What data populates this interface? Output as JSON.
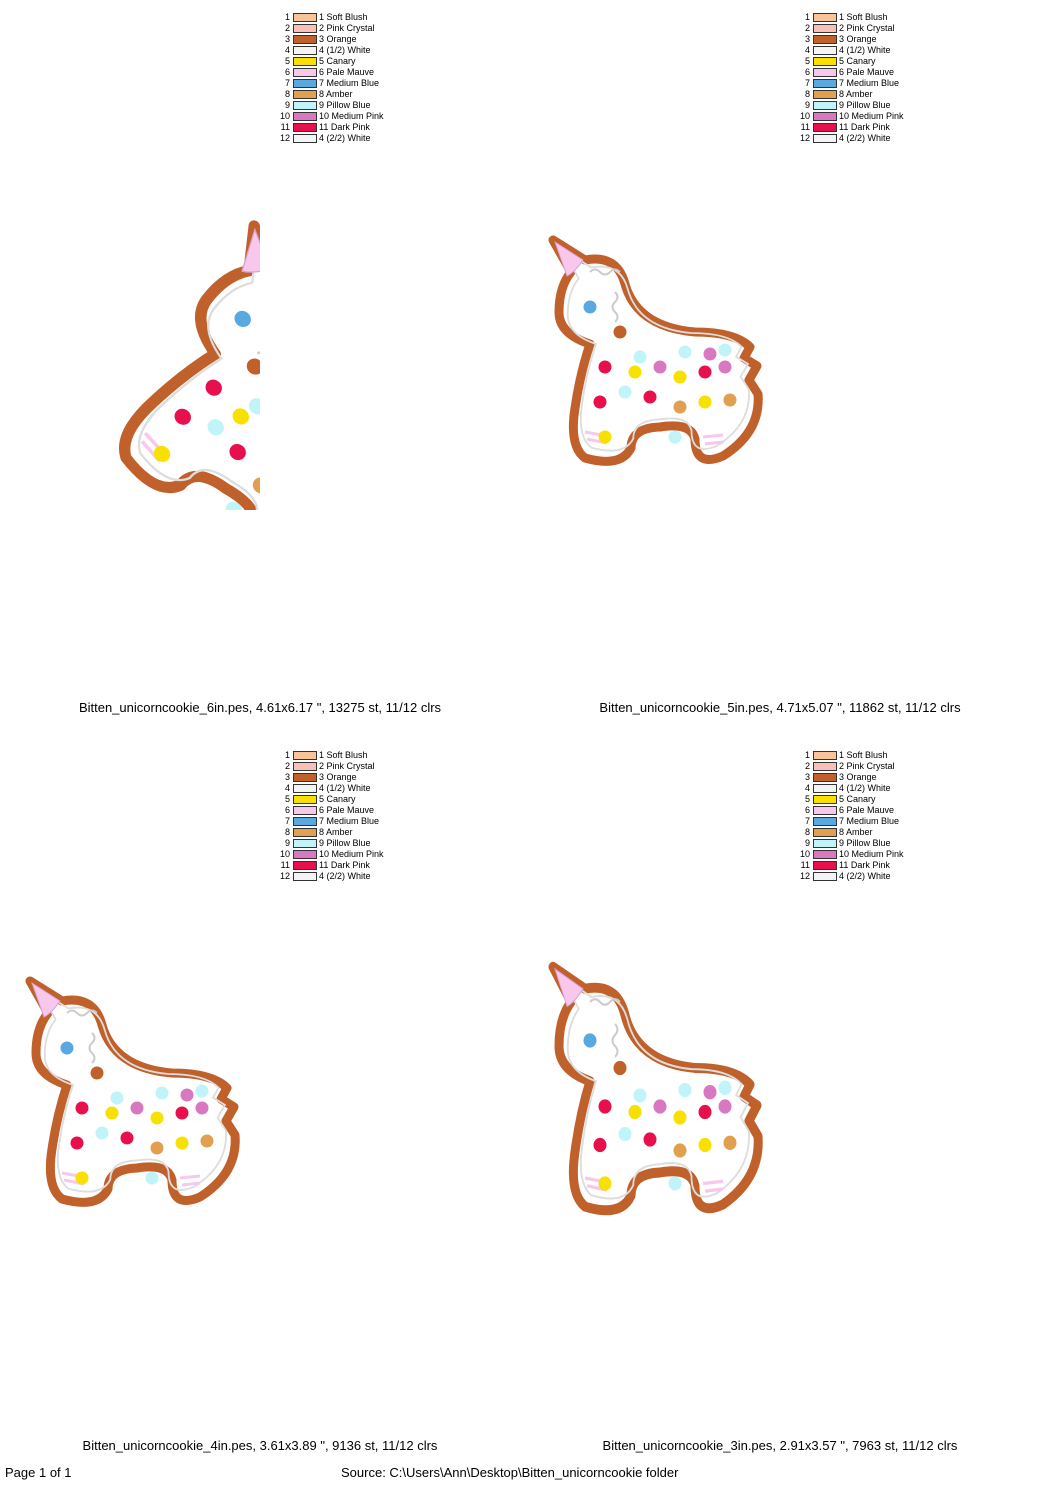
{
  "legend": [
    {
      "num": "1",
      "label": "1 Soft Blush",
      "color": "#f9c49a"
    },
    {
      "num": "2",
      "label": "2 Pink Crystal",
      "color": "#f8c0b8"
    },
    {
      "num": "3",
      "label": "3 Orange",
      "color": "#c0602a"
    },
    {
      "num": "4",
      "label": "4 (1/2) White",
      "color": "#f4f4f4"
    },
    {
      "num": "5",
      "label": "5 Canary",
      "color": "#f8e000"
    },
    {
      "num": "6",
      "label": "6 Pale Mauve",
      "color": "#f8c8ec"
    },
    {
      "num": "7",
      "label": "7 Medium Blue",
      "color": "#5aa8e0"
    },
    {
      "num": "8",
      "label": "8 Amber",
      "color": "#e0a050"
    },
    {
      "num": "9",
      "label": "9 Pillow Blue",
      "color": "#c0f4f8"
    },
    {
      "num": "10",
      "label": "10 Medium Pink",
      "color": "#d878c0"
    },
    {
      "num": "11",
      "label": "11 Dark Pink",
      "color": "#e8104c"
    },
    {
      "num": "12",
      "label": "4 (2/2) White",
      "color": "#f4f4f4"
    }
  ],
  "designs": [
    {
      "caption": "Bitten_unicorncookie_6in.pes, 4.61x6.17 \", 13275 st, 11/12 clrs"
    },
    {
      "caption": "Bitten_unicorncookie_5in.pes, 4.71x5.07 \", 11862 st, 11/12 clrs"
    },
    {
      "caption": "Bitten_unicorncookie_4in.pes, 3.61x3.89 \", 9136 st, 11/12 clrs"
    },
    {
      "caption": "Bitten_unicorncookie_3in.pes, 2.91x3.57 \", 7963 st, 11/12 clrs"
    }
  ],
  "footer": {
    "page": "Page 1 of 1",
    "source": "Source: C:\\Users\\Ann\\Desktop\\Bitten_unicorncookie folder"
  }
}
